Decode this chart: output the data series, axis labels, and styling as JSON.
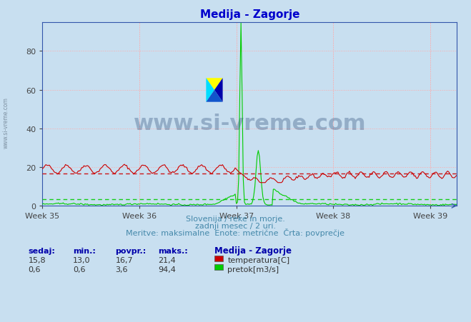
{
  "title": "Medija - Zagorje",
  "title_color": "#0000cc",
  "background_color": "#c8dff0",
  "plot_bg_color": "#c8dff0",
  "grid_color": "#ffaaaa",
  "grid_style": ":",
  "xlabel_weeks": [
    "Week 35",
    "Week 36",
    "Week 37",
    "Week 38",
    "Week 39"
  ],
  "ylim": [
    0,
    95
  ],
  "yticks": [
    0,
    20,
    40,
    60,
    80
  ],
  "temp_color": "#cc0000",
  "flow_color": "#00cc00",
  "temp_avg": 16.7,
  "flow_avg": 3.6,
  "watermark_text": "www.si-vreme.com",
  "watermark_color": "#1a3a6a",
  "watermark_alpha": 0.3,
  "sub_text1": "Slovenija / reke in morje.",
  "sub_text2": "zadnji mesec / 2 uri.",
  "sub_text3": "Meritve: maksimalne  Enote: metrične  Črta: povprečje",
  "sub_text_color": "#4488aa",
  "table_headers": [
    "sedaj:",
    "min.:",
    "povpr.:",
    "maks.:"
  ],
  "table_header_color": "#0000aa",
  "table_data": [
    [
      15.8,
      13.0,
      16.7,
      21.4
    ],
    [
      0.6,
      0.6,
      3.6,
      94.4
    ]
  ],
  "series_labels": [
    "temperatura[C]",
    "pretok[m3/s]"
  ],
  "series_colors": [
    "#cc0000",
    "#00cc00"
  ],
  "station_label": "Medija - Zagorje",
  "n_points": 360,
  "week_positions": [
    0,
    84,
    168,
    252,
    336
  ]
}
